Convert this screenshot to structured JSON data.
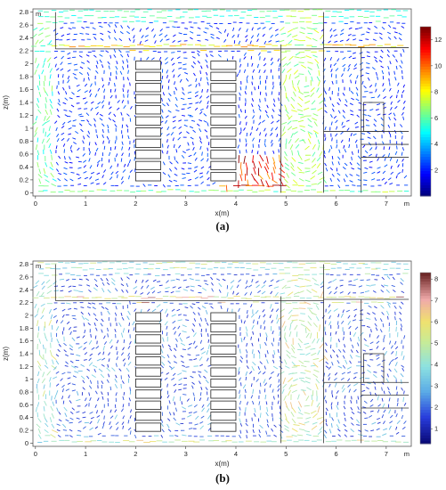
{
  "chart_data": [
    {
      "type": "quiver",
      "panel_label": "(a)",
      "xlabel": "x(m)",
      "ylabel": "z(m)",
      "x_unit": "m",
      "z_unit": "m",
      "xlim": [
        -0.05,
        7.5
      ],
      "ylim": [
        -0.05,
        2.85
      ],
      "x_ticks": [
        "0",
        "1",
        "2",
        "3",
        "4",
        "5",
        "6",
        "7"
      ],
      "y_ticks": [
        "0",
        "0.2",
        "0.4",
        "0.6",
        "0.8",
        "1",
        "1.2",
        "1.4",
        "1.6",
        "1.8",
        "2",
        "2.2",
        "2.4",
        "2.6",
        "2.8"
      ],
      "colorbar": {
        "min": 0,
        "max": 13,
        "ticks": [
          "2",
          "4",
          "6",
          "8",
          "10",
          "12"
        ],
        "colormap": "jet"
      },
      "obstacles": [
        {
          "name": "rack-1",
          "x": [
            2.0,
            2.5
          ],
          "z": [
            0.15,
            2.05
          ],
          "slots": 11
        },
        {
          "name": "rack-2",
          "x": [
            3.5,
            4.0
          ],
          "z": [
            0.15,
            2.05
          ],
          "slots": 11
        }
      ]
    },
    {
      "type": "quiver",
      "panel_label": "(b)",
      "xlabel": "x(m)",
      "ylabel": "z(m)",
      "x_unit": "m",
      "z_unit": "m",
      "xlim": [
        -0.05,
        7.5
      ],
      "ylim": [
        -0.05,
        2.85
      ],
      "x_ticks": [
        "0",
        "1",
        "2",
        "3",
        "4",
        "5",
        "6",
        "7"
      ],
      "y_ticks": [
        "0",
        "0.2",
        "0.4",
        "0.6",
        "0.8",
        "1",
        "1.2",
        "1.4",
        "1.6",
        "1.8",
        "2",
        "2.2",
        "2.4",
        "2.6",
        "2.8"
      ],
      "colorbar": {
        "min": 0.3,
        "max": 8.3,
        "ticks": [
          "1",
          "2",
          "3",
          "4",
          "5",
          "6",
          "7",
          "8"
        ],
        "colormap": "jet-light"
      },
      "obstacles": [
        {
          "name": "rack-1",
          "x": [
            2.0,
            2.5
          ],
          "z": [
            0.15,
            2.05
          ],
          "slots": 11
        },
        {
          "name": "rack-2",
          "x": [
            3.5,
            4.0
          ],
          "z": [
            0.15,
            2.05
          ],
          "slots": 11
        }
      ]
    }
  ]
}
